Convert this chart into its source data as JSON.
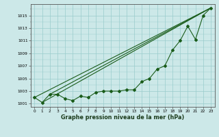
{
  "x": [
    0,
    1,
    2,
    3,
    4,
    5,
    6,
    7,
    8,
    9,
    10,
    11,
    12,
    13,
    14,
    15,
    16,
    17,
    18,
    19,
    20,
    21,
    22,
    23
  ],
  "y_main": [
    1002.0,
    1001.2,
    1002.5,
    1002.5,
    1001.8,
    1001.5,
    1002.2,
    1002.0,
    1002.8,
    1003.0,
    1003.0,
    1003.0,
    1003.2,
    1003.2,
    1004.5,
    1005.0,
    1006.5,
    1007.0,
    1009.5,
    1011.0,
    1013.3,
    1011.2,
    1015.0,
    1016.2
  ],
  "trend_lines": [
    {
      "x": [
        1,
        23
      ],
      "y": [
        1001.2,
        1016.2
      ]
    },
    {
      "x": [
        0,
        23
      ],
      "y": [
        1002.0,
        1016.2
      ]
    },
    {
      "x": [
        2,
        23
      ],
      "y": [
        1002.5,
        1016.2
      ]
    }
  ],
  "ylim": [
    1000.5,
    1016.8
  ],
  "yticks": [
    1001,
    1003,
    1005,
    1007,
    1009,
    1011,
    1013,
    1015
  ],
  "xticks": [
    0,
    1,
    2,
    3,
    4,
    5,
    6,
    7,
    8,
    9,
    10,
    11,
    12,
    13,
    14,
    15,
    16,
    17,
    18,
    19,
    20,
    21,
    22,
    23
  ],
  "xlabel": "Graphe pression niveau de la mer (hPa)",
  "line_color": "#1a5c1a",
  "bg_color": "#cce8e8",
  "grid_color": "#99cccc",
  "marker": "D",
  "marker_size": 2.0,
  "linewidth": 0.8,
  "tick_fontsize": 4.2,
  "xlabel_fontsize": 5.8
}
